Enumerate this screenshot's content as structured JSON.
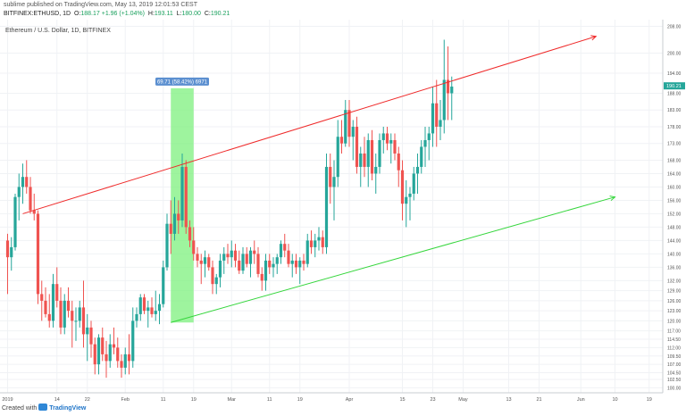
{
  "header": {
    "published": "sublime published on TradingView.com, May 13, 2019 12:01:53 CEST",
    "symbol": "BITFINEX:ETHUSD, 1D",
    "o": "188.17",
    "change": "+1.96 (+1.04%)",
    "h": "193.11",
    "l": "180.00",
    "c": "190.21",
    "legend": "Ethereum / U.S. Dollar, 1D, BITFINEX"
  },
  "footer": {
    "created_with": "Created with",
    "brand": "TradingView"
  },
  "colors": {
    "up": "#26a69a",
    "down": "#ef5350",
    "resistance": "#ef2b2b",
    "support": "#35d63c",
    "measure": "#7ef07e"
  },
  "chart_data": {
    "type": "candlestick",
    "title": "Ethereum / U.S. Dollar, 1D, BITFINEX",
    "ylim": [
      98.5,
      210
    ],
    "y_ticks": [
      "100.00",
      "102.50",
      "104.50",
      "107.00",
      "109.50",
      "112.00",
      "114.50",
      "117.00",
      "120.00",
      "123.00",
      "126.00",
      "129.00",
      "132.00",
      "136.00",
      "140.00",
      "144.00",
      "148.00",
      "152.00",
      "156.00",
      "160.00",
      "164.00",
      "168.00",
      "173.00",
      "178.00",
      "183.00",
      "188.00",
      "194.00",
      "200.00",
      "208.00"
    ],
    "x_ticks": [
      {
        "label": "2019",
        "day": 0
      },
      {
        "label": "14",
        "day": 13
      },
      {
        "label": "22",
        "day": 21
      },
      {
        "label": "Feb",
        "day": 31
      },
      {
        "label": "11",
        "day": 41
      },
      {
        "label": "19",
        "day": 49
      },
      {
        "label": "Mar",
        "day": 59
      },
      {
        "label": "11",
        "day": 69
      },
      {
        "label": "19",
        "day": 77
      },
      {
        "label": "Apr",
        "day": 90
      },
      {
        "label": "15",
        "day": 104
      },
      {
        "label": "23",
        "day": 112
      },
      {
        "label": "May",
        "day": 120
      },
      {
        "label": "13",
        "day": 132
      },
      {
        "label": "21",
        "day": 140
      },
      {
        "label": "Jun",
        "day": 151
      },
      {
        "label": "10",
        "day": 160
      },
      {
        "label": "19",
        "day": 169
      }
    ],
    "last_price": "190.21",
    "candles": [
      [
        144,
        146,
        128,
        139
      ],
      [
        139,
        145,
        135,
        142
      ],
      [
        142,
        158,
        141,
        157
      ],
      [
        157,
        164,
        150,
        160
      ],
      [
        160,
        167,
        155,
        163
      ],
      [
        163,
        168,
        158,
        160
      ],
      [
        160,
        163,
        152,
        153
      ],
      [
        153,
        158,
        150,
        152
      ],
      [
        152,
        153,
        125,
        128
      ],
      [
        128,
        132,
        120,
        126
      ],
      [
        126,
        130,
        121,
        122
      ],
      [
        122,
        128,
        118,
        120
      ],
      [
        120,
        134,
        118,
        131
      ],
      [
        131,
        136,
        124,
        126
      ],
      [
        126,
        130,
        116,
        118
      ],
      [
        118,
        128,
        116,
        126
      ],
      [
        126,
        130,
        121,
        123
      ],
      [
        123,
        126,
        112,
        120
      ],
      [
        120,
        124,
        114,
        120
      ],
      [
        120,
        126,
        118,
        124
      ],
      [
        124,
        132,
        112,
        116
      ],
      [
        116,
        122,
        108,
        118
      ],
      [
        118,
        120,
        109,
        113
      ],
      [
        113,
        115,
        104,
        107
      ],
      [
        107,
        116,
        104,
        115
      ],
      [
        115,
        118,
        108,
        110
      ],
      [
        110,
        114,
        103,
        108
      ],
      [
        108,
        116,
        106,
        113
      ],
      [
        113,
        118,
        110,
        112
      ],
      [
        112,
        115,
        106,
        108
      ],
      [
        108,
        110,
        103,
        106
      ],
      [
        106,
        112,
        104,
        110
      ],
      [
        110,
        116,
        104,
        108
      ],
      [
        108,
        124,
        106,
        120
      ],
      [
        120,
        124,
        118,
        122
      ],
      [
        122,
        128,
        120,
        127
      ],
      [
        127,
        128,
        122,
        123
      ],
      [
        123,
        126,
        118,
        124
      ],
      [
        124,
        127,
        121,
        122
      ],
      [
        122,
        129,
        120,
        123
      ],
      [
        123,
        128,
        119,
        125
      ],
      [
        125,
        138,
        124,
        136
      ],
      [
        136,
        152,
        135,
        149
      ],
      [
        149,
        156,
        140,
        146
      ],
      [
        146,
        157,
        144,
        152
      ],
      [
        152,
        156,
        146,
        150
      ],
      [
        150,
        170,
        148,
        166
      ],
      [
        166,
        168,
        146,
        148
      ],
      [
        148,
        150,
        142,
        144
      ],
      [
        144,
        148,
        138,
        140
      ],
      [
        140,
        142,
        136,
        138
      ],
      [
        138,
        140,
        131,
        137
      ],
      [
        137,
        141,
        133,
        139
      ],
      [
        139,
        140,
        135,
        136
      ],
      [
        136,
        138,
        128,
        131
      ],
      [
        131,
        134,
        128,
        133
      ],
      [
        133,
        140,
        130,
        138
      ],
      [
        138,
        142,
        134,
        140
      ],
      [
        140,
        143,
        137,
        139
      ],
      [
        139,
        144,
        136,
        141
      ],
      [
        141,
        143,
        136,
        138
      ],
      [
        138,
        141,
        134,
        135
      ],
      [
        135,
        142,
        134,
        140
      ],
      [
        140,
        142,
        136,
        137
      ],
      [
        137,
        142,
        133,
        141
      ],
      [
        141,
        144,
        137,
        140
      ],
      [
        140,
        142,
        133,
        134
      ],
      [
        134,
        136,
        129,
        132
      ],
      [
        132,
        140,
        129,
        138
      ],
      [
        138,
        140,
        134,
        136
      ],
      [
        136,
        139,
        133,
        137
      ],
      [
        137,
        140,
        134,
        139
      ],
      [
        139,
        144,
        137,
        143
      ],
      [
        143,
        146,
        139,
        141
      ],
      [
        141,
        143,
        136,
        137
      ],
      [
        137,
        140,
        133,
        138
      ],
      [
        138,
        140,
        134,
        136
      ],
      [
        136,
        139,
        131,
        138
      ],
      [
        138,
        140,
        135,
        137
      ],
      [
        137,
        146,
        136,
        144
      ],
      [
        144,
        147,
        140,
        142
      ],
      [
        142,
        146,
        139,
        144
      ],
      [
        144,
        148,
        141,
        145
      ],
      [
        145,
        147,
        140,
        142
      ],
      [
        142,
        170,
        140,
        166
      ],
      [
        166,
        170,
        155,
        160
      ],
      [
        160,
        168,
        150,
        163
      ],
      [
        163,
        180,
        160,
        175
      ],
      [
        175,
        180,
        170,
        173
      ],
      [
        173,
        186,
        172,
        183
      ],
      [
        183,
        186,
        172,
        175
      ],
      [
        175,
        180,
        168,
        178
      ],
      [
        178,
        181,
        164,
        166
      ],
      [
        166,
        172,
        160,
        170
      ],
      [
        170,
        175,
        163,
        166
      ],
      [
        166,
        176,
        160,
        174
      ],
      [
        174,
        177,
        162,
        164
      ],
      [
        164,
        170,
        158,
        166
      ],
      [
        166,
        176,
        164,
        174
      ],
      [
        174,
        178,
        170,
        176
      ],
      [
        176,
        178,
        171,
        173
      ],
      [
        173,
        176,
        167,
        174
      ],
      [
        174,
        176,
        168,
        170
      ],
      [
        170,
        172,
        160,
        165
      ],
      [
        165,
        168,
        150,
        155
      ],
      [
        155,
        162,
        148,
        157
      ],
      [
        157,
        160,
        150,
        158
      ],
      [
        158,
        166,
        156,
        164
      ],
      [
        164,
        170,
        158,
        166
      ],
      [
        166,
        174,
        164,
        172
      ],
      [
        172,
        178,
        166,
        174
      ],
      [
        174,
        178,
        168,
        176
      ],
      [
        176,
        190,
        172,
        185
      ],
      [
        185,
        192,
        172,
        178
      ],
      [
        178,
        186,
        174,
        180
      ],
      [
        180,
        204,
        176,
        192
      ],
      [
        192,
        202,
        180,
        188
      ],
      [
        188,
        193,
        180,
        190
      ]
    ],
    "trendlines": [
      {
        "name": "resistance",
        "from": [
          4,
          152
        ],
        "to": [
          155,
          205
        ]
      },
      {
        "name": "support",
        "from": [
          43,
          119.5
        ],
        "to": [
          160,
          157
        ]
      }
    ],
    "measure": {
      "label": "69.71 (58.42%) 6971",
      "from_day": 43,
      "to_day": 49,
      "low": 119.5,
      "high": 189.5
    }
  }
}
